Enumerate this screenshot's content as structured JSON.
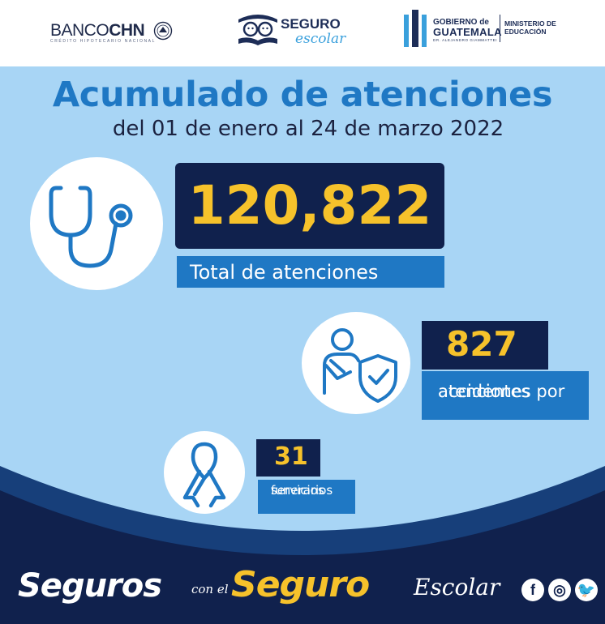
{
  "header": {
    "banco_logo": {
      "name_light": "BANCO",
      "name_bold": "CHN",
      "tagline": "CRÉDITO HIPOTECARIO NACIONAL"
    },
    "seguro_logo": {
      "title": "SEGURO",
      "subtitle": "escolar"
    },
    "gobierno_logo": {
      "line1": "GOBIERNO de",
      "line2": "GUATEMALA",
      "line3": "DR. ALEJANDRO GIAMMATTEI",
      "ministry_line1": "MINISTERIO DE",
      "ministry_line2": "EDUCACIÓN"
    }
  },
  "main": {
    "title": "Acumulado de atenciones",
    "subtitle": "del 01 de enero al 24 de marzo 2022",
    "total": {
      "value": "120,822",
      "label": "Total de atenciones",
      "icon": "stethoscope-icon"
    },
    "accidentes": {
      "value": "827",
      "label_line1": "atenciones por",
      "label_line2": "accidentes",
      "icon": "injured-person-shield-icon"
    },
    "funerarios": {
      "value": "31",
      "label_line1": "servicios",
      "label_line2": "funerarios",
      "icon": "ribbon-icon"
    }
  },
  "footer": {
    "slogan_part1": "Seguros",
    "slogan_part2": "con el",
    "slogan_part3": "Seguro",
    "slogan_part4": "Escolar",
    "social": {
      "facebook": "f",
      "instagram": "◎",
      "twitter": "🐦"
    }
  },
  "colors": {
    "light_blue_bg": "#a8d5f5",
    "title_blue": "#1f78c4",
    "navy": "#10214d",
    "yellow": "#f6c22b"
  }
}
